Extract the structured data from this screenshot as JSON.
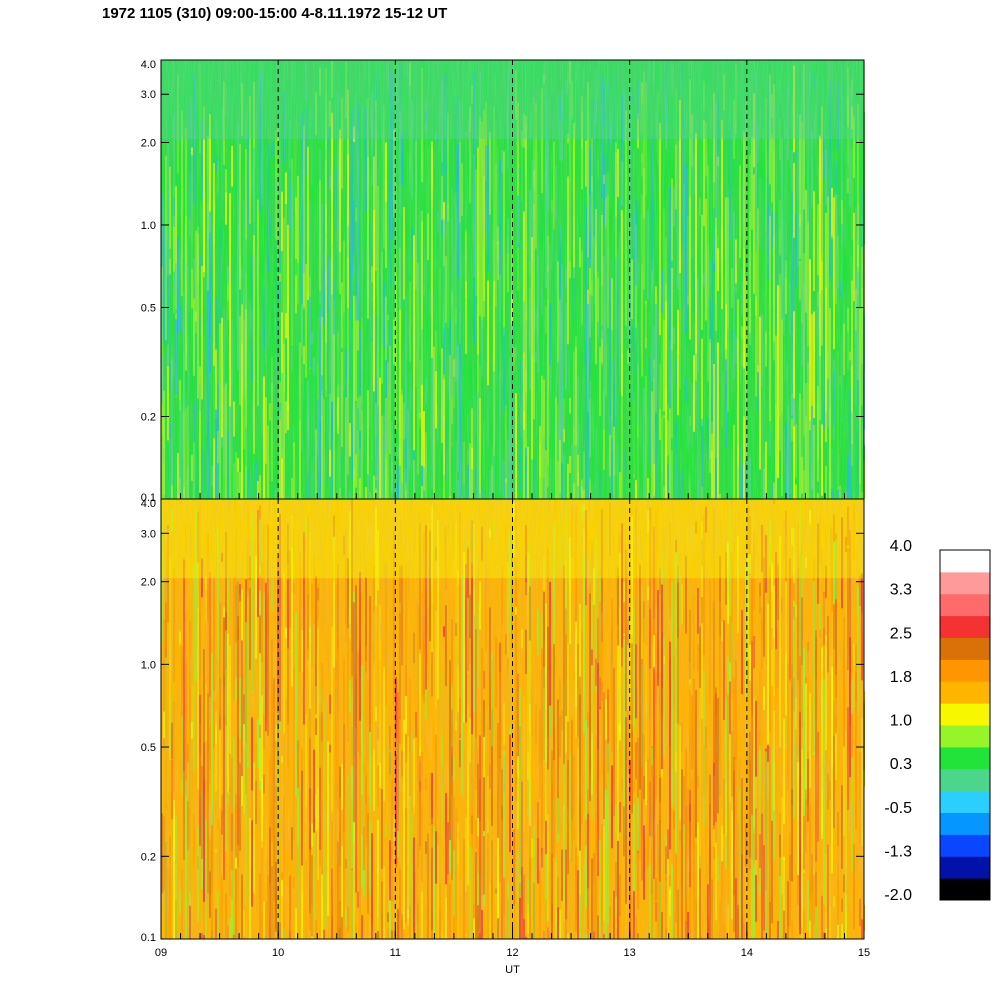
{
  "title": "1972 1105 (310) 09:00-15:00 4-8.11.1972  15-12 UT",
  "chart_data": {
    "type": "heatmap",
    "xlabel": "UT",
    "x_ticks": [
      {
        "value": 9,
        "label": "09"
      },
      {
        "value": 10,
        "label": "10"
      },
      {
        "value": 11,
        "label": "11"
      },
      {
        "value": 12,
        "label": "12"
      },
      {
        "value": 13,
        "label": "13"
      },
      {
        "value": 14,
        "label": "14"
      },
      {
        "value": 15,
        "label": "15"
      }
    ],
    "xlim": [
      9,
      15
    ],
    "y_scale": "log",
    "ylim": [
      0.1,
      4.0
    ],
    "y_ticks": [
      {
        "value": 0.1,
        "label": "0.1"
      },
      {
        "value": 0.2,
        "label": "0.2"
      },
      {
        "value": 0.5,
        "label": "0.5"
      },
      {
        "value": 1.0,
        "label": "1.0"
      },
      {
        "value": 2.0,
        "label": "2.0"
      },
      {
        "value": 3.0,
        "label": "3.0"
      },
      {
        "value": 4.0,
        "label": "4.0"
      }
    ],
    "panels": [
      {
        "position": "top",
        "dominant_colors": [
          "#22e33a",
          "#96f52a",
          "#4bd68c",
          "#f7f700",
          "#1fb8ea"
        ]
      },
      {
        "position": "bottom",
        "dominant_colors": [
          "#ffb400",
          "#ff9600",
          "#d97008",
          "#f7f700",
          "#96f52a",
          "#f53232"
        ]
      }
    ],
    "colorbar": {
      "colors": [
        "#000000",
        "#0012a8",
        "#0a46ff",
        "#0696ff",
        "#2ccdff",
        "#4bd68c",
        "#22e33a",
        "#96f52a",
        "#f7f700",
        "#ffb400",
        "#ff9600",
        "#d97008",
        "#f53232",
        "#ff6a6a",
        "#ff9a9a",
        "#ffffff"
      ],
      "labels": [
        "-2.0",
        "-1.3",
        "-0.5",
        "0.3",
        "1.0",
        "1.8",
        "2.5",
        "3.3",
        "4.0"
      ]
    },
    "grid": "dashed vertical lines at each hour"
  }
}
